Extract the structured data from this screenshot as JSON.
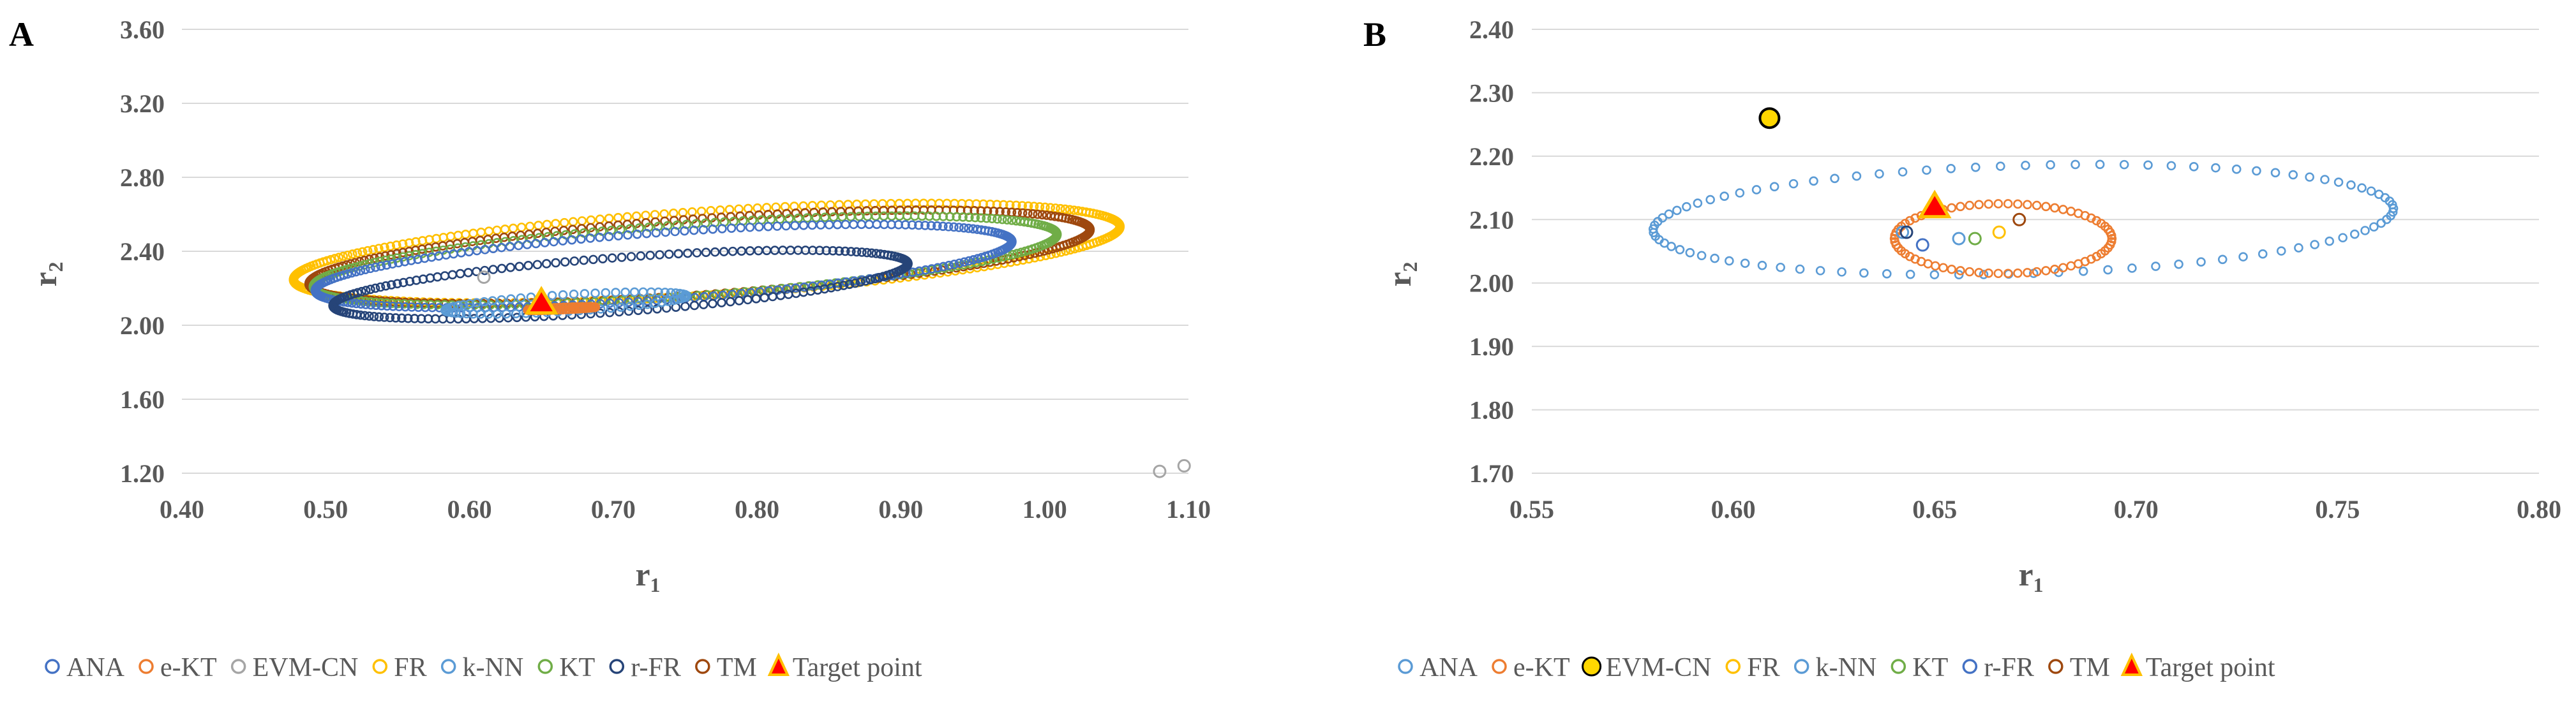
{
  "colors": {
    "ANA": "#4472c4",
    "e-KT": "#ed7d31",
    "EVM-CN": "#a5a5a5",
    "FR": "#ffc000",
    "k-NN": "#5b9bd5",
    "KT": "#70ad47",
    "r-FR": "#264478",
    "TM": "#9e480e",
    "target_fill": "#ff0000",
    "target_edge": "#ffc000",
    "gridline": "#d9d9d9"
  },
  "legend_entries": [
    "ANA",
    "e-KT",
    "EVM-CN",
    "FR",
    "k-NN",
    "KT",
    "r-FR",
    "TM",
    "Target point"
  ],
  "chart_data": [
    {
      "panel": "A",
      "type": "scatter",
      "xlabel": "r",
      "xlabel_sub": "1",
      "ylabel": "r",
      "ylabel_sub": "2",
      "xlim": [
        0.4,
        1.1
      ],
      "ylim": [
        1.2,
        3.6
      ],
      "xticks": [
        "0.40",
        "0.50",
        "0.60",
        "0.70",
        "0.80",
        "0.90",
        "1.00",
        "1.10"
      ],
      "yticks": [
        "1.20",
        "1.60",
        "2.00",
        "2.40",
        "2.80",
        "3.20",
        "3.60"
      ],
      "grid": "horizontal",
      "legend": "bottom",
      "series": [
        {
          "name": "FR",
          "contour": {
            "center": [
              0.765,
              2.39
            ],
            "semi_axes": [
              0.345,
              0.19
            ],
            "rotation_deg": 41.5
          }
        },
        {
          "name": "TM",
          "contour": {
            "center": [
              0.76,
              2.37
            ],
            "semi_axes": [
              0.33,
              0.17
            ],
            "rotation_deg": 41.5
          }
        },
        {
          "name": "KT",
          "contour": {
            "center": [
              0.75,
              2.35
            ],
            "semi_axes": [
              0.315,
              0.16
            ],
            "rotation_deg": 41.5
          }
        },
        {
          "name": "ANA",
          "contour": {
            "center": [
              0.735,
              2.32
            ],
            "semi_axes": [
              0.295,
              0.15
            ],
            "rotation_deg": 41.5
          }
        },
        {
          "name": "r-FR",
          "contour": {
            "center": [
              0.705,
              2.22
            ],
            "semi_axes": [
              0.245,
              0.12
            ],
            "rotation_deg": 41.5
          }
        },
        {
          "name": "k-NN",
          "contour": {
            "center": [
              0.667,
              2.12
            ],
            "semi_axes": [
              0.095,
              0.04
            ],
            "rotation_deg": 31
          }
        },
        {
          "name": "e-KT",
          "contour": {
            "center": [
              0.664,
              2.09
            ],
            "semi_axes": [
              0.025,
              0.006
            ],
            "rotation_deg": 20
          }
        },
        {
          "name": "EVM-CN",
          "points": [
            [
              0.61,
              2.26
            ],
            [
              1.08,
              1.21
            ],
            [
              1.097,
              1.24
            ]
          ]
        },
        {
          "name": "Target point",
          "points": [
            [
              0.65,
              2.12
            ]
          ]
        }
      ]
    },
    {
      "panel": "B",
      "type": "scatter",
      "xlabel": "r",
      "xlabel_sub": "1",
      "ylabel": "r",
      "ylabel_sub": "2",
      "xlim": [
        0.55,
        0.8
      ],
      "ylim": [
        1.7,
        2.4
      ],
      "xticks": [
        "0.55",
        "0.60",
        "0.65",
        "0.70",
        "0.75",
        "0.80"
      ],
      "yticks": [
        "1.70",
        "1.80",
        "1.90",
        "2.00",
        "2.10",
        "2.20",
        "2.30",
        "2.40"
      ],
      "grid": "horizontal",
      "legend": "bottom",
      "series": [
        {
          "name": "k-NN",
          "contour": {
            "center": [
              0.672,
              2.1
            ],
            "semi_axes": [
              0.098,
              0.08
            ],
            "rotation_deg": 37
          }
        },
        {
          "name": "e-KT",
          "contour": {
            "center": [
              0.667,
              2.07
            ],
            "semi_axes": [
              0.027,
              0.055
            ],
            "rotation_deg": 0
          }
        },
        {
          "name": "EVM-CN",
          "points": [
            [
              0.609,
              2.26
            ]
          ]
        },
        {
          "name": "ANA",
          "points": [
            [
              0.647,
              2.06
            ]
          ]
        },
        {
          "name": "FR",
          "points": [
            [
              0.666,
              2.08
            ]
          ]
        },
        {
          "name": "k-NN",
          "points": [
            [
              0.642,
              2.08
            ],
            [
              0.656,
              2.07
            ]
          ]
        },
        {
          "name": "KT",
          "points": [
            [
              0.66,
              2.07
            ]
          ]
        },
        {
          "name": "r-FR",
          "points": [
            [
              0.643,
              2.08
            ]
          ]
        },
        {
          "name": "TM",
          "points": [
            [
              0.671,
              2.1
            ]
          ]
        },
        {
          "name": "Target point",
          "points": [
            [
              0.65,
              2.12
            ]
          ]
        }
      ]
    }
  ],
  "panels": [
    {
      "letter": "A",
      "legend": [
        {
          "label": "ANA",
          "marker": "ring",
          "color": "ANA"
        },
        {
          "label": "e-KT",
          "marker": "ring",
          "color": "e-KT"
        },
        {
          "label": "EVM-CN",
          "marker": "ring",
          "color": "EVM-CN"
        },
        {
          "label": "FR",
          "marker": "ring",
          "color": "FR"
        },
        {
          "label": "k-NN",
          "marker": "ring",
          "color": "k-NN"
        },
        {
          "label": "KT",
          "marker": "ring",
          "color": "KT"
        },
        {
          "label": "r-FR",
          "marker": "ring",
          "color": "r-FR"
        },
        {
          "label": "TM",
          "marker": "ring",
          "color": "TM"
        },
        {
          "label": "Target point",
          "marker": "triangle",
          "color": "target_fill"
        }
      ]
    },
    {
      "letter": "B",
      "legend": [
        {
          "label": "ANA",
          "marker": "ring",
          "color": "k-NN"
        },
        {
          "label": "e-KT",
          "marker": "ring",
          "color": "e-KT"
        },
        {
          "label": "EVM-CN",
          "marker": "dot-yellow",
          "color": "FR"
        },
        {
          "label": "FR",
          "marker": "ring",
          "color": "FR"
        },
        {
          "label": "k-NN",
          "marker": "ring",
          "color": "k-NN"
        },
        {
          "label": "KT",
          "marker": "ring",
          "color": "KT"
        },
        {
          "label": "r-FR",
          "marker": "ring",
          "color": "ANA"
        },
        {
          "label": "TM",
          "marker": "ring",
          "color": "TM"
        },
        {
          "label": "Target point",
          "marker": "triangle",
          "color": "target_fill"
        }
      ]
    }
  ]
}
